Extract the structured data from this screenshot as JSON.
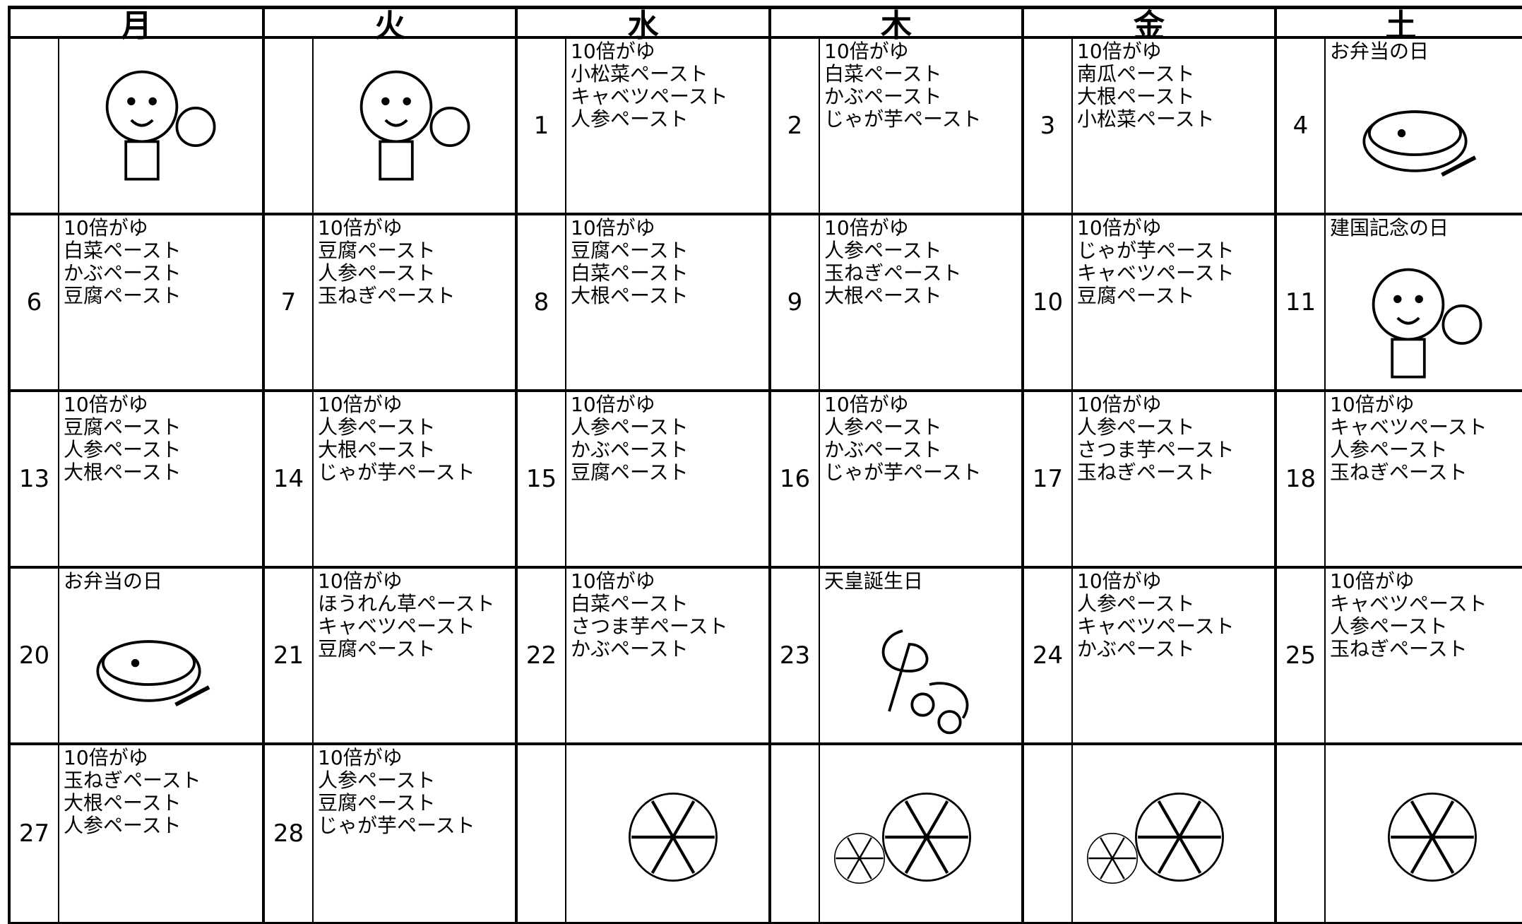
{
  "header": {
    "days": [
      "月",
      "火",
      "水",
      "木",
      "金",
      "土"
    ]
  },
  "weeks": [
    [
      null,
      null,
      {
        "date": 1,
        "menu": [
          "10倍がゆ",
          "小松菜ペースト",
          "キャベツペースト",
          "人参ペースト"
        ]
      },
      {
        "date": 2,
        "menu": [
          "10倍がゆ",
          "白菜ペースト",
          "かぶペースト",
          "じゃが芋ペースト"
        ]
      },
      {
        "date": 3,
        "menu": [
          "10倍がゆ",
          "南瓜ペースト",
          "大根ペースト",
          "小松菜ペースト"
        ]
      },
      {
        "date": 4,
        "event": "お弁当の日"
      }
    ],
    [
      {
        "date": 6,
        "menu": [
          "10倍がゆ",
          "白菜ペースト",
          "かぶペースト",
          "豆腐ペースト"
        ]
      },
      {
        "date": 7,
        "menu": [
          "10倍がゆ",
          "豆腐ペースト",
          "人参ペースト",
          "玉ねぎペースト"
        ]
      },
      {
        "date": 8,
        "menu": [
          "10倍がゆ",
          "豆腐ペースト",
          "白菜ペースト",
          "大根ペースト"
        ]
      },
      {
        "date": 9,
        "menu": [
          "10倍がゆ",
          "人参ペースト",
          "玉ねぎペースト",
          "大根ペースト"
        ]
      },
      {
        "date": 10,
        "menu": [
          "10倍がゆ",
          "じゃが芋ペースト",
          "キャベツペースト",
          "豆腐ペースト"
        ]
      },
      {
        "date": 11,
        "event": "建国記念の日"
      }
    ],
    [
      {
        "date": 13,
        "menu": [
          "10倍がゆ",
          "豆腐ペースト",
          "人参ペースト",
          "大根ペースト"
        ]
      },
      {
        "date": 14,
        "menu": [
          "10倍がゆ",
          "人参ペースト",
          "大根ペースト",
          "じゃが芋ペースト"
        ]
      },
      {
        "date": 15,
        "menu": [
          "10倍がゆ",
          "人参ペースト",
          "かぶペースト",
          "豆腐ペースト"
        ]
      },
      {
        "date": 16,
        "menu": [
          "10倍がゆ",
          "人参ペースト",
          "かぶペースト",
          "じゃが芋ペースト"
        ]
      },
      {
        "date": 17,
        "menu": [
          "10倍がゆ",
          "人参ペースト",
          "さつま芋ペースト",
          "玉ねぎペースト"
        ]
      },
      {
        "date": 18,
        "menu": [
          "10倍がゆ",
          "キャベツペースト",
          "人参ペースト",
          "玉ねぎペースト"
        ]
      }
    ],
    [
      {
        "date": 20,
        "event": "お弁当の日"
      },
      {
        "date": 21,
        "menu": [
          "10倍がゆ",
          "ほうれん草ペースト",
          "キャベツペースト",
          "豆腐ペースト"
        ]
      },
      {
        "date": 22,
        "menu": [
          "10倍がゆ",
          "白菜ペースト",
          "さつま芋ペースト",
          "かぶペースト"
        ]
      },
      {
        "date": 23,
        "event": "天皇誕生日"
      },
      {
        "date": 24,
        "menu": [
          "10倍がゆ",
          "人参ペースト",
          "キャベツペースト",
          "かぶペースト"
        ]
      },
      {
        "date": 25,
        "menu": [
          "10倍がゆ",
          "キャベツペースト",
          "人参ペースト",
          "玉ねぎペースト"
        ]
      }
    ],
    [
      {
        "date": 27,
        "menu": [
          "10倍がゆ",
          "玉ねぎペースト",
          "大根ペースト",
          "人参ペースト"
        ]
      },
      {
        "date": 28,
        "menu": [
          "10倍がゆ",
          "人参ペースト",
          "豆腐ペースト",
          "じゃが芋ペースト"
        ]
      },
      null,
      null,
      null,
      null
    ]
  ]
}
